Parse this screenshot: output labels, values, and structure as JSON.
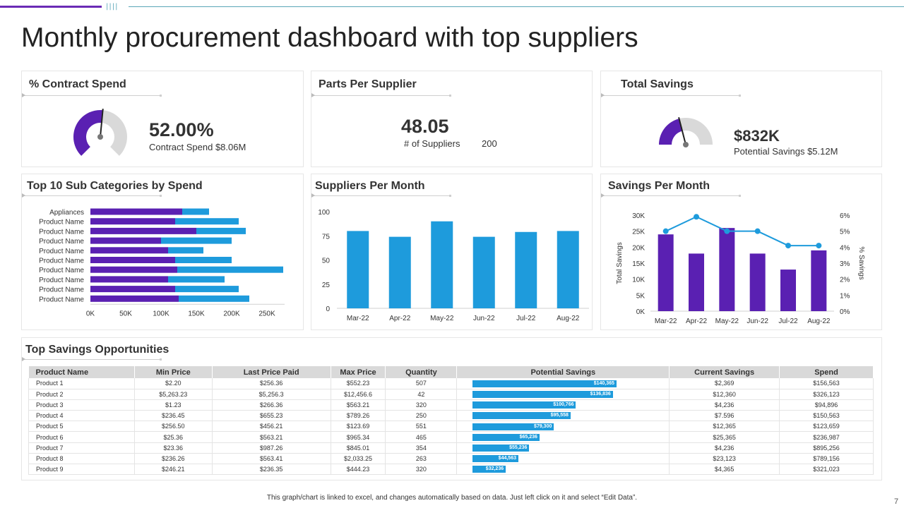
{
  "title": "Monthly procurement dashboard with top suppliers",
  "colors": {
    "purple": "#5a20b2",
    "blue": "#1e9bdc",
    "gray": "#d9d9d9"
  },
  "kpi": {
    "contract": {
      "title": "% Contract Spend",
      "value": "52.00%",
      "caption": "Contract Spend $8.06M",
      "fraction": 0.52
    },
    "parts": {
      "title": "Parts Per Supplier",
      "value": "48.05",
      "caption_label": "# of Suppliers",
      "caption_value": "200"
    },
    "savings": {
      "title": "Total Savings",
      "value": "$832K",
      "caption": "Potential Savings $5.12M",
      "fraction": 0.42
    }
  },
  "sections": {
    "top10": "Top 10 Sub Categories by Spend",
    "suppliers_month": "Suppliers Per Month",
    "savings_month": "Savings Per Month",
    "opportunities": "Top Savings Opportunities"
  },
  "chart_data": [
    {
      "type": "bar",
      "orientation": "horizontal",
      "stacked": true,
      "title": "Top 10 Sub Categories by Spend",
      "categories": [
        "Appliances",
        "Product Name",
        "Product Name",
        "Product Name",
        "Product Name",
        "Product Name",
        "Product Name",
        "Product Name",
        "Product Name",
        "Product Name"
      ],
      "series": [
        {
          "values": [
            130000,
            120000,
            150000,
            100000,
            110000,
            120000,
            123000,
            110000,
            120000,
            125000
          ]
        },
        {
          "values": [
            38000,
            90000,
            70000,
            100000,
            50000,
            80000,
            150000,
            80000,
            90000,
            100000
          ]
        }
      ],
      "xticks": [
        "0K",
        "50K",
        "100K",
        "150K",
        "200K",
        "250K"
      ],
      "xlim": [
        0,
        275000
      ]
    },
    {
      "type": "bar",
      "title": "Suppliers Per Month",
      "categories": [
        "Mar-22",
        "Apr-22",
        "May-22",
        "Jun-22",
        "Jul-22",
        "Aug-22"
      ],
      "values": [
        80,
        74,
        90,
        74,
        79,
        80
      ],
      "yticks": [
        "0",
        "25",
        "50",
        "75",
        "100"
      ],
      "ylim": [
        0,
        100
      ]
    },
    {
      "type": "bar",
      "title": "Savings Per Month",
      "categories": [
        "Mar-22",
        "Apr-22",
        "May-22",
        "Jun-22",
        "Jul-22",
        "Aug-22"
      ],
      "bars": {
        "values": [
          24000,
          18000,
          26000,
          18000,
          13000,
          19000
        ]
      },
      "line": {
        "values": [
          5.0,
          5.9,
          5.0,
          5.0,
          4.1,
          4.1
        ]
      },
      "ylabel": "Total Savings",
      "y2label": "% Savings",
      "yticks": [
        "0K",
        "5K",
        "10K",
        "15K",
        "20K",
        "25K",
        "30K"
      ],
      "y2ticks": [
        "0%",
        "1%",
        "2%",
        "3%",
        "4%",
        "5%",
        "6%"
      ],
      "ylim": [
        0,
        30000
      ],
      "y2lim": [
        0,
        6
      ]
    },
    {
      "type": "table",
      "title": "Top Savings Opportunities",
      "columns": [
        "Product Name",
        "Min Price",
        "Last Price Paid",
        "Max Price",
        "Quantity",
        "Potential Savings",
        "Current Savings",
        "Spend"
      ],
      "max_potential": 160000,
      "rows": [
        {
          "name": "Product 1",
          "min": "$2.20",
          "last": "$256.36",
          "max": "$552.23",
          "qty": "507",
          "potential_label": "$140,365",
          "potential": 140365,
          "current": "$2,369",
          "spend": "$156,563"
        },
        {
          "name": "Product 2",
          "min": "$5,263.23",
          "last": "$5,256.3",
          "max": "$12,456.6",
          "qty": "42",
          "potential_label": "$136,836",
          "potential": 136836,
          "current": "$12,360",
          "spend": "$326,123"
        },
        {
          "name": "Product 3",
          "min": "$1.23",
          "last": "$266.36",
          "max": "$563.21",
          "qty": "320",
          "potential_label": "$100,766",
          "potential": 100766,
          "current": "$4,236",
          "spend": "$94,896"
        },
        {
          "name": "Product 4",
          "min": "$236.45",
          "last": "$655.23",
          "max": "$789.26",
          "qty": "250",
          "potential_label": "$95,558",
          "potential": 95558,
          "current": "$7.596",
          "spend": "$150,563"
        },
        {
          "name": "Product 5",
          "min": "$256.50",
          "last": "$456.21",
          "max": "$123.69",
          "qty": "551",
          "potential_label": "$79,300",
          "potential": 79300,
          "current": "$12,365",
          "spend": "$123,659"
        },
        {
          "name": "Product 6",
          "min": "$25.36",
          "last": "$563.21",
          "max": "$965.34",
          "qty": "465",
          "potential_label": "$65,236",
          "potential": 65236,
          "current": "$25,365",
          "spend": "$236,987"
        },
        {
          "name": "Product 7",
          "min": "$23.36",
          "last": "$987.26",
          "max": "$845.01",
          "qty": "354",
          "potential_label": "$55,236",
          "potential": 55236,
          "current": "$4,236",
          "spend": "$895,256"
        },
        {
          "name": "Product 8",
          "min": "$236.26",
          "last": "$563.41",
          "max": "$2,033.25",
          "qty": "263",
          "potential_label": "$44,563",
          "potential": 44563,
          "current": "$23,123",
          "spend": "$789,156"
        },
        {
          "name": "Product 9",
          "min": "$246.21",
          "last": "$236.35",
          "max": "$444.23",
          "qty": "320",
          "potential_label": "$32,236",
          "potential": 32236,
          "current": "$4,365",
          "spend": "$321,023"
        }
      ]
    }
  ],
  "footnote": "This graph/chart is linked to excel, and changes automatically based on data. Just left click on it and select “Edit Data”.",
  "page_number": "7"
}
